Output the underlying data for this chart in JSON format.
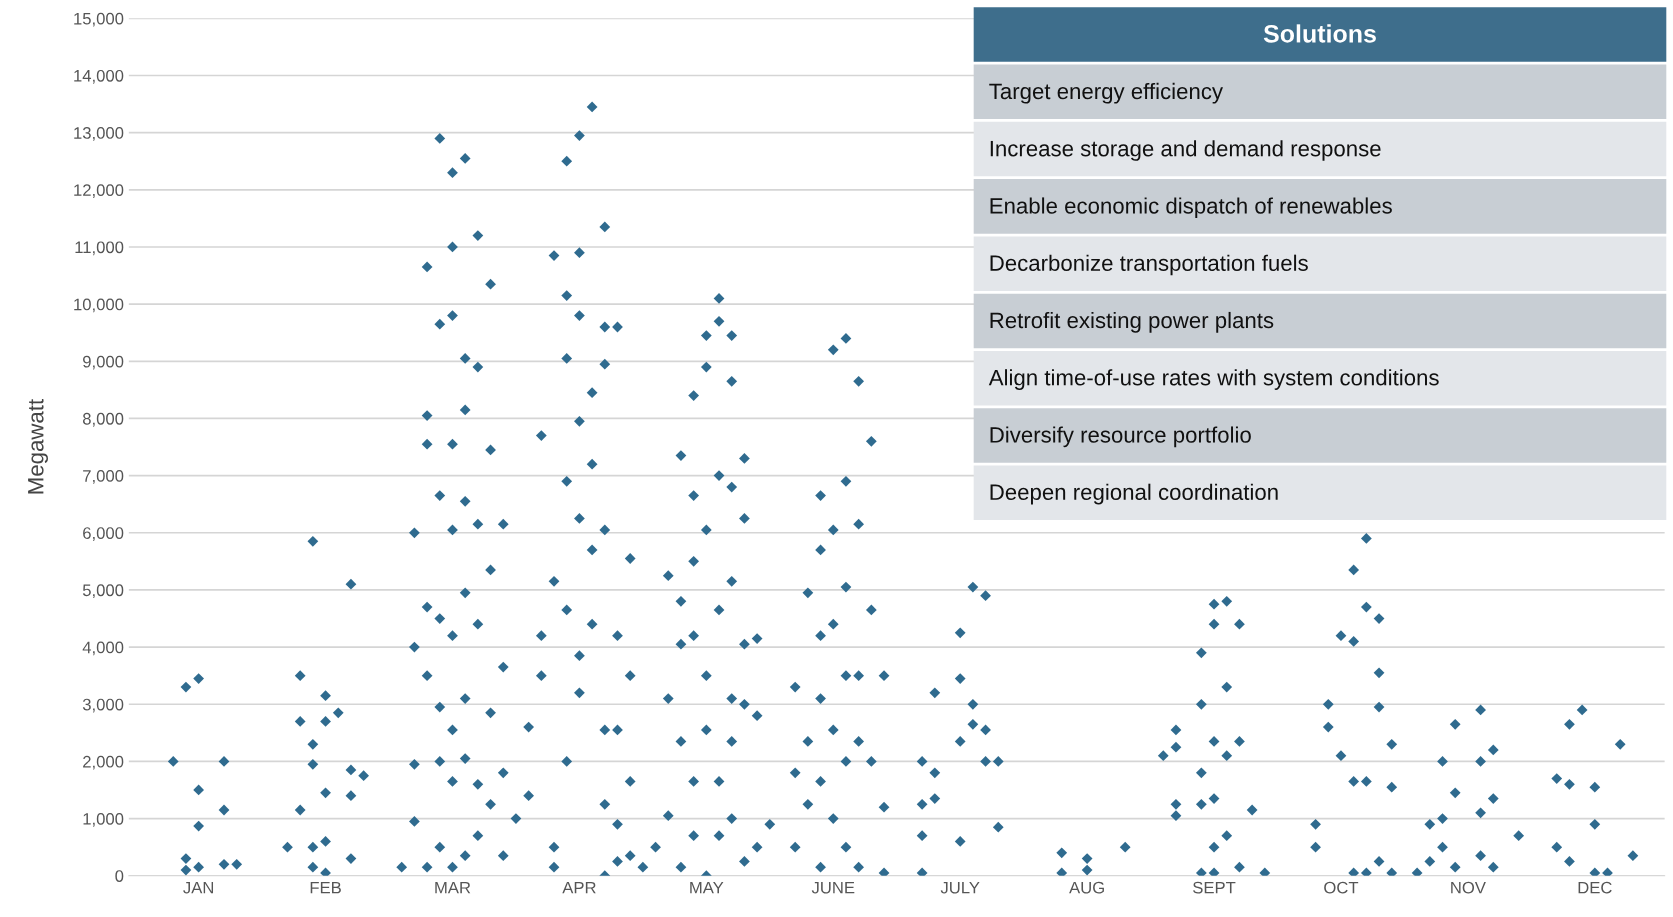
{
  "chart_data": {
    "type": "scatter",
    "ylabel": "Megawatt",
    "categories": [
      null,
      null,
      null,
      null,
      null,
      "JAN",
      null,
      null,
      null,
      null,
      null,
      null,
      null,
      null,
      null,
      "FEB",
      null,
      null,
      null,
      null,
      null,
      null,
      null,
      null,
      null,
      "MAR",
      null,
      null,
      null,
      null,
      null,
      null,
      null,
      null,
      null,
      "APR",
      null,
      null,
      null,
      null,
      null,
      null,
      null,
      null,
      null,
      "MAY",
      null,
      null,
      null,
      null,
      null,
      null,
      null,
      null,
      null,
      "JUNE",
      null,
      null,
      null,
      null,
      null,
      null,
      null,
      null,
      null,
      "JULY",
      null,
      null,
      null,
      null,
      null,
      null,
      null,
      null,
      null,
      "AUG",
      null,
      null,
      null,
      null,
      null,
      null,
      null,
      null,
      null,
      "SEPT",
      null,
      null,
      null,
      null,
      null,
      null,
      null,
      null,
      null,
      "OCT",
      null,
      null,
      null,
      null,
      null,
      null,
      null,
      null,
      null,
      "NOV",
      null,
      null,
      null,
      null,
      null,
      null,
      null,
      null,
      null,
      "DEC",
      null,
      null,
      null,
      null,
      null
    ],
    "ylim": [
      0,
      15000
    ],
    "yticks": [
      {
        "value": 0,
        "label": "0"
      },
      {
        "value": 1000,
        "label": "1,000"
      },
      {
        "value": 2000,
        "label": "2,000"
      },
      {
        "value": 3000,
        "label": "3,000"
      },
      {
        "value": 4000,
        "label": "4,000"
      },
      {
        "value": 5000,
        "label": "5,000"
      },
      {
        "value": 6000,
        "label": "6,000"
      },
      {
        "value": 7000,
        "label": "7,000"
      },
      {
        "value": 8000,
        "label": "8,000"
      },
      {
        "value": 9000,
        "label": "9,000"
      },
      {
        "value": 10000,
        "label": "10,000"
      },
      {
        "value": 11000,
        "label": "11,000"
      },
      {
        "value": 12000,
        "label": "12,000"
      },
      {
        "value": 13000,
        "label": "13,000"
      },
      {
        "value": 14000,
        "label": "14,000"
      },
      {
        "value": 15000,
        "label": "15,000"
      }
    ],
    "grid": "y",
    "marker": "diamond",
    "annotations": [
      "Solutions",
      "Target energy efficiency",
      "Increase storage and demand response",
      "Enable economic dispatch of renewables",
      "Decarbonize transportation fuels",
      "Retrofit existing power plants",
      "Align time-of-use rates with system conditions",
      "Diversify resource portfolio",
      "Deepen regional coordination"
    ],
    "series": [
      {
        "color": "#2f6b8f",
        "values": [
          null,
          null,
          null,
          2000,
          3300,
          3450,
          null,
          2000,
          200,
          null,
          null,
          null,
          500,
          3500,
          5850,
          3150,
          2850,
          1850,
          1750,
          null,
          null,
          150,
          6000,
          150,
          12900,
          12300,
          12550,
          11200,
          10350,
          3650,
          1000,
          1400,
          4200,
          10850,
          12500,
          12950,
          13450,
          11350,
          9600,
          5550,
          150,
          500,
          1050,
          7350,
          8400,
          9450,
          10100,
          9450,
          7300,
          4150,
          900,
          null,
          3300,
          4950,
          6650,
          9200,
          9400,
          8650,
          7600,
          3500,
          null,
          null,
          2000,
          3200,
          null,
          4250,
          5050,
          2550,
          2000,
          null,
          null,
          null,
          null,
          400,
          null,
          300,
          null,
          null,
          500,
          null,
          null,
          2100,
          2250,
          null,
          3900,
          4400,
          4800,
          4400,
          1150,
          50,
          null,
          null,
          null,
          500,
          3000,
          4200,
          5350,
          5900,
          4500,
          2300,
          null,
          50,
          900,
          2000,
          2650,
          null,
          2900,
          2200,
          null,
          700,
          null,
          null,
          1700,
          2650,
          2900,
          1550,
          50,
          2300,
          350,
          null,
          null
        ]
      },
      {
        "color": "#2f6b8f",
        "values": [
          null,
          null,
          null,
          null,
          300,
          150,
          null,
          1150,
          null,
          null,
          null,
          null,
          null,
          2700,
          2300,
          2700,
          null,
          300,
          null,
          null,
          null,
          null,
          1950,
          10650,
          9650,
          11000,
          9050,
          8900,
          7450,
          1800,
          null,
          2600,
          3500,
          5150,
          10150,
          10900,
          8450,
          9600,
          4200,
          3500,
          null,
          null,
          5250,
          4800,
          6650,
          8900,
          9700,
          8650,
          6250,
          2800,
          null,
          null,
          1800,
          2350,
          5700,
          6050,
          6900,
          6150,
          4650,
          1200,
          null,
          null,
          1250,
          1800,
          null,
          3450,
          3000,
          2000,
          850,
          null,
          null,
          null,
          null,
          50,
          null,
          100,
          null,
          null,
          null,
          null,
          null,
          null,
          2550,
          null,
          3000,
          4750,
          3300,
          2350,
          null,
          null,
          null,
          null,
          null,
          900,
          2600,
          2100,
          4100,
          4700,
          3550,
          1550,
          null,
          null,
          250,
          1000,
          1450,
          null,
          2000,
          1350,
          null,
          null,
          null,
          null,
          500,
          1600,
          null,
          900,
          null,
          null,
          null,
          null,
          null
        ]
      },
      {
        "color": "#2f6b8f",
        "values": [
          null,
          null,
          null,
          null,
          100,
          1500,
          null,
          200,
          null,
          null,
          null,
          null,
          null,
          1150,
          1950,
          1450,
          null,
          5100,
          null,
          null,
          null,
          null,
          950,
          7550,
          6650,
          9800,
          8150,
          6150,
          5350,
          350,
          null,
          null,
          7700,
          500,
          9050,
          9800,
          7200,
          8950,
          2550,
          1650,
          null,
          null,
          3100,
          4050,
          5500,
          6050,
          7000,
          6800,
          4050,
          500,
          null,
          null,
          500,
          1250,
          4200,
          4400,
          5050,
          3500,
          2000,
          50,
          null,
          null,
          700,
          1350,
          null,
          2350,
          2650,
          4900,
          null,
          null,
          null,
          null,
          null,
          null,
          null,
          null,
          null,
          null,
          null,
          null,
          null,
          null,
          1050,
          null,
          1800,
          2350,
          2100,
          150,
          null,
          null,
          null,
          null,
          null,
          null,
          null,
          null,
          1650,
          1650,
          2950,
          50,
          null,
          null,
          null,
          500,
          150,
          null,
          1100,
          150,
          null,
          null,
          null,
          null,
          null,
          250,
          null,
          50,
          null,
          null,
          null,
          null,
          null
        ]
      },
      {
        "color": "#2f6b8f",
        "values": [
          null,
          null,
          null,
          null,
          null,
          870,
          null,
          null,
          null,
          null,
          null,
          null,
          null,
          null,
          500,
          600,
          null,
          1400,
          null,
          null,
          null,
          null,
          4000,
          8050,
          4500,
          7550,
          6550,
          4400,
          2850,
          6150,
          null,
          null,
          null,
          150,
          6900,
          7950,
          5700,
          6050,
          900,
          350,
          null,
          null,
          null,
          2350,
          4200,
          3500,
          4650,
          5150,
          3000,
          null,
          null,
          null,
          null,
          null,
          3100,
          2550,
          3500,
          2350,
          null,
          null,
          null,
          null,
          50,
          null,
          null,
          600,
          null,
          null,
          null,
          null,
          null,
          null,
          null,
          null,
          null,
          null,
          null,
          null,
          null,
          null,
          null,
          null,
          1250,
          null,
          1250,
          1350,
          700,
          null,
          null,
          null,
          null,
          null,
          null,
          null,
          null,
          null,
          50,
          50,
          250,
          null,
          null,
          null,
          null,
          null,
          null,
          null,
          350,
          null,
          null,
          null,
          null,
          null,
          null,
          null,
          null,
          null,
          null,
          null,
          null,
          null,
          null
        ]
      },
      {
        "color": "#2f6b8f",
        "values": [
          null,
          null,
          null,
          null,
          null,
          null,
          null,
          null,
          null,
          null,
          null,
          null,
          null,
          null,
          150,
          50,
          null,
          null,
          null,
          null,
          null,
          null,
          null,
          4700,
          2950,
          6050,
          4950,
          1600,
          1250,
          null,
          null,
          null,
          null,
          null,
          4650,
          6250,
          4400,
          2550,
          250,
          null,
          null,
          null,
          null,
          150,
          1650,
          2550,
          1650,
          3100,
          250,
          null,
          null,
          null,
          null,
          null,
          1650,
          1000,
          2000,
          150,
          null,
          null,
          null,
          null,
          null,
          null,
          null,
          null,
          null,
          null,
          null,
          null,
          null,
          null,
          null,
          null,
          null,
          null,
          null,
          null,
          null,
          null,
          null,
          null,
          null,
          null,
          50,
          500,
          null,
          null,
          null,
          null,
          null,
          null,
          null,
          null,
          null,
          null,
          null,
          null,
          null,
          null,
          null,
          null,
          null,
          null,
          null,
          null,
          null,
          null,
          null,
          null,
          null,
          null,
          null,
          null,
          null,
          null,
          null,
          null,
          null,
          null,
          null
        ]
      },
      {
        "color": "#2f6b8f",
        "values": [
          null,
          null,
          null,
          null,
          null,
          null,
          null,
          null,
          null,
          null,
          null,
          null,
          null,
          null,
          null,
          null,
          null,
          null,
          null,
          null,
          null,
          null,
          null,
          3500,
          2000,
          4200,
          3100,
          700,
          null,
          null,
          null,
          null,
          null,
          null,
          2000,
          3850,
          null,
          1250,
          null,
          null,
          null,
          null,
          null,
          null,
          700,
          0,
          700,
          2350,
          null,
          null,
          null,
          null,
          null,
          null,
          150,
          null,
          500,
          null,
          null,
          null,
          null,
          null,
          null,
          null,
          null,
          null,
          null,
          null,
          null,
          null,
          null,
          null,
          null,
          null,
          null,
          null,
          null,
          null,
          null,
          null,
          null,
          null,
          null,
          null,
          null,
          50,
          null,
          null,
          null,
          null,
          null,
          null,
          null,
          null,
          null,
          null,
          null,
          null,
          null,
          null,
          null,
          null,
          null,
          null,
          null,
          null,
          null,
          null,
          null,
          null,
          null,
          null,
          null,
          null,
          null,
          null,
          null,
          null,
          null,
          null,
          null
        ]
      },
      {
        "color": "#2f6b8f",
        "values": [
          null,
          null,
          null,
          null,
          null,
          null,
          null,
          null,
          null,
          null,
          null,
          null,
          null,
          null,
          null,
          null,
          null,
          null,
          null,
          null,
          null,
          null,
          null,
          null,
          500,
          2550,
          2050,
          null,
          null,
          null,
          null,
          null,
          null,
          null,
          null,
          3200,
          null,
          0,
          null,
          null,
          null,
          null,
          null,
          null,
          null,
          null,
          null,
          1000,
          null,
          null,
          null,
          null,
          null,
          null,
          null,
          null,
          null,
          null,
          null,
          null,
          null,
          null,
          null,
          null,
          null,
          null,
          null,
          null,
          null,
          null,
          null,
          null,
          null,
          null,
          null,
          null,
          null,
          null,
          null,
          null,
          null,
          null,
          null,
          null,
          null,
          null,
          null,
          null,
          null,
          null,
          null,
          null,
          null,
          null,
          null,
          null,
          null,
          null,
          null,
          null,
          null,
          null,
          null,
          null,
          null,
          null,
          null,
          null,
          null,
          null,
          null,
          null,
          null,
          null,
          null,
          null,
          null,
          null,
          null,
          null,
          null
        ]
      },
      {
        "color": "#2f6b8f",
        "values": [
          null,
          null,
          null,
          null,
          null,
          null,
          null,
          null,
          null,
          null,
          null,
          null,
          null,
          null,
          null,
          null,
          null,
          null,
          null,
          null,
          null,
          null,
          null,
          null,
          null,
          1650,
          350,
          null,
          null,
          null,
          null,
          null,
          null,
          null,
          null,
          null,
          null,
          null,
          null,
          null,
          null,
          null,
          null,
          null,
          null,
          null,
          null,
          null,
          null,
          null,
          null,
          null,
          null,
          null,
          null,
          null,
          null,
          null,
          null,
          null,
          null,
          null,
          null,
          null,
          null,
          null,
          null,
          null,
          null,
          null,
          null,
          null,
          null,
          null,
          null,
          null,
          null,
          null,
          null,
          null,
          null,
          null,
          null,
          null,
          null,
          null,
          null,
          null,
          null,
          null,
          null,
          null,
          null,
          null,
          null,
          null,
          null,
          null,
          null,
          null,
          null,
          null,
          null,
          null,
          null,
          null,
          null,
          null,
          null,
          null,
          null,
          null,
          null,
          null,
          null,
          null,
          null,
          null,
          null,
          null,
          null
        ]
      },
      {
        "color": "#2f6b8f",
        "values": [
          null,
          null,
          null,
          null,
          null,
          null,
          null,
          null,
          null,
          null,
          null,
          null,
          null,
          null,
          null,
          null,
          null,
          null,
          null,
          null,
          null,
          null,
          null,
          null,
          null,
          150,
          null,
          null,
          null,
          null,
          null,
          null,
          null,
          null,
          null,
          null,
          null,
          null,
          null,
          null,
          null,
          null,
          null,
          null,
          null,
          null,
          null,
          null,
          null,
          null,
          null,
          null,
          null,
          null,
          null,
          null,
          null,
          null,
          null,
          null,
          null,
          null,
          null,
          null,
          null,
          null,
          null,
          null,
          null,
          null,
          null,
          null,
          null,
          null,
          null,
          null,
          null,
          null,
          null,
          null,
          null,
          null,
          null,
          null,
          null,
          null,
          null,
          null,
          null,
          null,
          null,
          null,
          null,
          null,
          null,
          null,
          null,
          null,
          null,
          null,
          null,
          null,
          null,
          null,
          null,
          null,
          null,
          null,
          null,
          null,
          null,
          null,
          null,
          null,
          null,
          null,
          null,
          null,
          null,
          null,
          null
        ]
      }
    ]
  }
}
